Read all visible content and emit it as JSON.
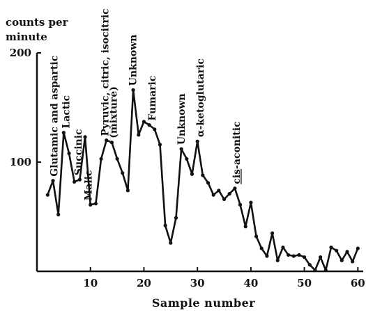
{
  "chart_data": {
    "type": "line",
    "title": "",
    "xlabel": "Sample number",
    "ylabel": "counts per minute",
    "xlim": [
      0,
      61
    ],
    "ylim": [
      0,
      200
    ],
    "x_ticks": [
      10,
      20,
      30,
      40,
      50,
      60
    ],
    "x_tick_labels": [
      "10",
      "20",
      "30",
      "40",
      "50",
      "60"
    ],
    "y_ticks": [
      100,
      200
    ],
    "y_tick_labels": [
      "100",
      "200"
    ],
    "grid": false,
    "legend": "none",
    "line_color": "#111111",
    "series": [
      {
        "x": [
          2,
          3,
          4,
          5,
          6,
          7,
          8,
          9,
          10,
          11,
          12,
          13,
          14,
          15,
          16,
          17,
          18,
          19,
          20,
          21,
          22,
          23,
          24,
          25,
          26,
          27,
          28,
          29,
          30,
          31,
          32,
          33,
          34,
          35,
          36,
          37,
          38,
          39,
          40,
          41,
          42,
          43,
          44,
          45,
          46,
          47,
          48,
          49,
          50,
          51,
          52,
          53,
          54,
          55,
          56,
          57,
          58,
          59,
          60
        ],
        "y": [
          70,
          83,
          52,
          127,
          108,
          82,
          84,
          123,
          61,
          62,
          103,
          120,
          118,
          103,
          90,
          74,
          166,
          125,
          137,
          134,
          130,
          116,
          42,
          26,
          49,
          112,
          103,
          89,
          119,
          88,
          81,
          70,
          74,
          66,
          71,
          76,
          61,
          41,
          63,
          32,
          21,
          14,
          35,
          10,
          22,
          15,
          14,
          15,
          13,
          6,
          1,
          13,
          1,
          22,
          19,
          10,
          18,
          9,
          21
        ]
      }
    ],
    "y_axis_caption": [
      "counts per",
      "minute"
    ],
    "annotations": [
      {
        "text": "Glutamic and aspartic",
        "x": 3.2
      },
      {
        "text": "Lactic",
        "x": 5.4
      },
      {
        "text": "Succinic",
        "x": 7.7
      },
      {
        "text": "Malic",
        "x": 9.6
      },
      {
        "text": "Pyruvic, citric, isocitric",
        "x": 12.7
      },
      {
        "text": "(mixture)",
        "x": 14.3
      },
      {
        "text": "Unknown",
        "x": 17.9
      },
      {
        "text": "Fumaric",
        "x": 21.5
      },
      {
        "text": "Unknown",
        "x": 27.0
      },
      {
        "text": "α-ketoglutaric",
        "x": 30.5
      },
      {
        "text": "cis-aconitic",
        "x": 37.3
      }
    ]
  }
}
